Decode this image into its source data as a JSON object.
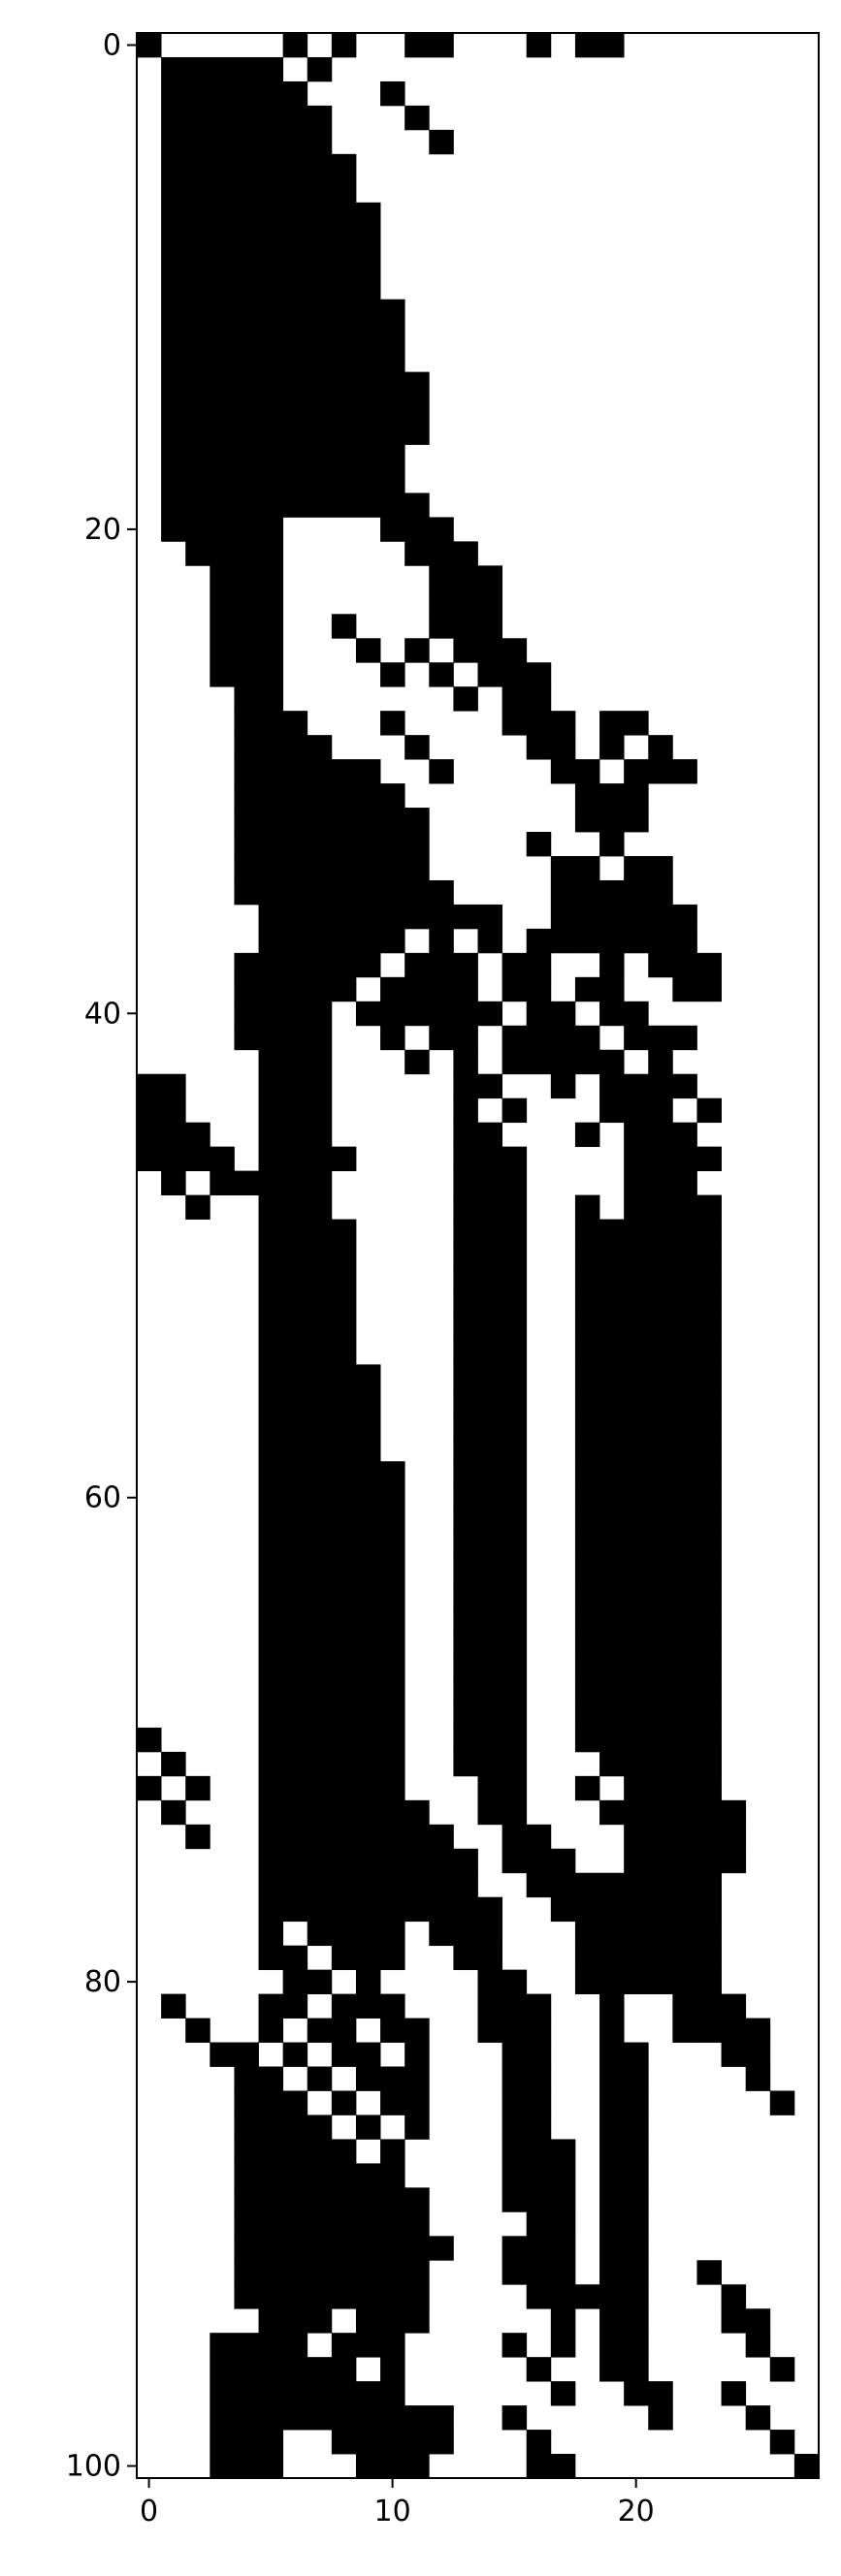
{
  "chart_data": {
    "type": "heatmap",
    "title": "",
    "xlabel": "",
    "ylabel": "",
    "n_cols": 28,
    "n_rows": 101,
    "xlim": [
      -0.5,
      27.5
    ],
    "ylim": [
      100.5,
      -0.5
    ],
    "x_ticks": [
      0,
      10,
      20
    ],
    "x_tick_labels": [
      "0",
      "10",
      "20"
    ],
    "y_ticks": [
      0,
      20,
      40,
      60,
      80,
      100
    ],
    "y_tick_labels": [
      "0",
      "20",
      "40",
      "60",
      "80",
      "100"
    ],
    "colormap": {
      "0": "#ffffff",
      "1": "#000000"
    },
    "grid": false,
    "legend": "none",
    "runs_note": "each row is a list of [start_col, end_col] inclusive runs of value 1",
    "rows": [
      [
        [
          0,
          0
        ],
        [
          6,
          6
        ],
        [
          8,
          8
        ],
        [
          11,
          12
        ],
        [
          16,
          16
        ],
        [
          18,
          19
        ]
      ],
      [
        [
          1,
          5
        ],
        [
          7,
          7
        ]
      ],
      [
        [
          1,
          5
        ],
        [
          6,
          6
        ],
        [
          10,
          10
        ]
      ],
      [
        [
          1,
          7
        ],
        [
          11,
          11
        ]
      ],
      [
        [
          1,
          7
        ],
        [
          12,
          12
        ]
      ],
      [
        [
          1,
          8
        ]
      ],
      [
        [
          1,
          8
        ]
      ],
      [
        [
          1,
          9
        ]
      ],
      [
        [
          1,
          9
        ]
      ],
      [
        [
          1,
          9
        ]
      ],
      [
        [
          1,
          9
        ]
      ],
      [
        [
          1,
          10
        ]
      ],
      [
        [
          1,
          10
        ]
      ],
      [
        [
          1,
          10
        ]
      ],
      [
        [
          1,
          11
        ]
      ],
      [
        [
          1,
          11
        ]
      ],
      [
        [
          1,
          11
        ]
      ],
      [
        [
          1,
          10
        ]
      ],
      [
        [
          1,
          10
        ]
      ],
      [
        [
          1,
          11
        ]
      ],
      [
        [
          1,
          5
        ],
        [
          10,
          12
        ]
      ],
      [
        [
          2,
          5
        ],
        [
          11,
          13
        ]
      ],
      [
        [
          3,
          5
        ],
        [
          12,
          14
        ]
      ],
      [
        [
          3,
          5
        ],
        [
          12,
          14
        ]
      ],
      [
        [
          3,
          5
        ],
        [
          8,
          8
        ],
        [
          12,
          14
        ]
      ],
      [
        [
          3,
          5
        ],
        [
          9,
          9
        ],
        [
          11,
          11
        ],
        [
          13,
          15
        ]
      ],
      [
        [
          3,
          5
        ],
        [
          10,
          10
        ],
        [
          12,
          12
        ],
        [
          14,
          16
        ]
      ],
      [
        [
          4,
          5
        ],
        [
          13,
          13
        ],
        [
          15,
          16
        ]
      ],
      [
        [
          4,
          6
        ],
        [
          10,
          10
        ],
        [
          15,
          17
        ],
        [
          19,
          20
        ]
      ],
      [
        [
          4,
          7
        ],
        [
          11,
          11
        ],
        [
          16,
          17
        ],
        [
          19,
          19
        ],
        [
          21,
          21
        ]
      ],
      [
        [
          4,
          9
        ],
        [
          12,
          12
        ],
        [
          17,
          18
        ],
        [
          20,
          22
        ]
      ],
      [
        [
          4,
          10
        ],
        [
          18,
          20
        ]
      ],
      [
        [
          4,
          11
        ],
        [
          18,
          20
        ]
      ],
      [
        [
          4,
          11
        ],
        [
          16,
          16
        ],
        [
          19,
          19
        ]
      ],
      [
        [
          4,
          11
        ],
        [
          17,
          18
        ],
        [
          20,
          21
        ]
      ],
      [
        [
          4,
          12
        ],
        [
          17,
          21
        ]
      ],
      [
        [
          5,
          13
        ],
        [
          14,
          14
        ],
        [
          17,
          19
        ],
        [
          20,
          22
        ]
      ],
      [
        [
          5,
          10
        ],
        [
          12,
          12
        ],
        [
          14,
          14
        ],
        [
          16,
          16
        ],
        [
          17,
          17
        ],
        [
          18,
          18
        ],
        [
          19,
          19
        ],
        [
          20,
          22
        ]
      ],
      [
        [
          4,
          9
        ],
        [
          11,
          13
        ],
        [
          15,
          16
        ],
        [
          19,
          19
        ],
        [
          21,
          23
        ]
      ],
      [
        [
          4,
          8
        ],
        [
          10,
          13
        ],
        [
          15,
          16
        ],
        [
          18,
          19
        ],
        [
          22,
          23
        ]
      ],
      [
        [
          4,
          7
        ],
        [
          9,
          14
        ],
        [
          16,
          17
        ],
        [
          19,
          20
        ]
      ],
      [
        [
          4,
          7
        ],
        [
          10,
          10
        ],
        [
          12,
          13
        ],
        [
          15,
          16
        ],
        [
          17,
          18
        ],
        [
          20,
          22
        ]
      ],
      [
        [
          5,
          7
        ],
        [
          11,
          11
        ],
        [
          13,
          13
        ],
        [
          15,
          16
        ],
        [
          17,
          17
        ],
        [
          18,
          18
        ],
        [
          19,
          19
        ],
        [
          21,
          21
        ]
      ],
      [
        [
          0,
          1
        ],
        [
          5,
          7
        ],
        [
          13,
          14
        ],
        [
          17,
          17
        ],
        [
          19,
          21
        ],
        [
          22,
          22
        ]
      ],
      [
        [
          0,
          1
        ],
        [
          5,
          7
        ],
        [
          13,
          13
        ],
        [
          15,
          15
        ],
        [
          19,
          20
        ],
        [
          21,
          21
        ],
        [
          23,
          23
        ]
      ],
      [
        [
          0,
          2
        ],
        [
          5,
          7
        ],
        [
          13,
          14
        ],
        [
          18,
          18
        ],
        [
          20,
          22
        ]
      ],
      [
        [
          0,
          3
        ],
        [
          5,
          8
        ],
        [
          13,
          15
        ],
        [
          20,
          23
        ]
      ],
      [
        [
          1,
          1
        ],
        [
          3,
          4
        ],
        [
          5,
          7
        ],
        [
          13,
          15
        ],
        [
          20,
          22
        ]
      ],
      [
        [
          2,
          2
        ],
        [
          5,
          7
        ],
        [
          13,
          15
        ],
        [
          18,
          18
        ],
        [
          20,
          23
        ]
      ],
      [
        [
          5,
          8
        ],
        [
          13,
          15
        ],
        [
          18,
          23
        ]
      ],
      [
        [
          5,
          8
        ],
        [
          13,
          15
        ],
        [
          18,
          23
        ]
      ],
      [
        [
          5,
          8
        ],
        [
          13,
          15
        ],
        [
          18,
          23
        ]
      ],
      [
        [
          5,
          8
        ],
        [
          13,
          15
        ],
        [
          18,
          23
        ]
      ],
      [
        [
          5,
          8
        ],
        [
          13,
          15
        ],
        [
          18,
          23
        ]
      ],
      [
        [
          5,
          8
        ],
        [
          13,
          15
        ],
        [
          18,
          23
        ]
      ],
      [
        [
          5,
          9
        ],
        [
          13,
          15
        ],
        [
          18,
          23
        ]
      ],
      [
        [
          5,
          9
        ],
        [
          13,
          15
        ],
        [
          18,
          23
        ]
      ],
      [
        [
          5,
          9
        ],
        [
          13,
          15
        ],
        [
          18,
          23
        ]
      ],
      [
        [
          5,
          9
        ],
        [
          13,
          15
        ],
        [
          18,
          23
        ]
      ],
      [
        [
          5,
          10
        ],
        [
          13,
          15
        ],
        [
          18,
          23
        ]
      ],
      [
        [
          5,
          10
        ],
        [
          13,
          15
        ],
        [
          18,
          23
        ]
      ],
      [
        [
          5,
          10
        ],
        [
          13,
          15
        ],
        [
          18,
          23
        ]
      ],
      [
        [
          5,
          10
        ],
        [
          13,
          15
        ],
        [
          18,
          23
        ]
      ],
      [
        [
          5,
          10
        ],
        [
          13,
          15
        ],
        [
          18,
          23
        ]
      ],
      [
        [
          5,
          10
        ],
        [
          13,
          15
        ],
        [
          18,
          23
        ]
      ],
      [
        [
          5,
          10
        ],
        [
          13,
          15
        ],
        [
          18,
          23
        ]
      ],
      [
        [
          5,
          10
        ],
        [
          13,
          15
        ],
        [
          18,
          23
        ]
      ],
      [
        [
          5,
          10
        ],
        [
          13,
          15
        ],
        [
          18,
          23
        ]
      ],
      [
        [
          5,
          10
        ],
        [
          13,
          15
        ],
        [
          18,
          23
        ]
      ],
      [
        [
          5,
          10
        ],
        [
          13,
          15
        ],
        [
          18,
          23
        ]
      ],
      [
        [
          0,
          0
        ],
        [
          5,
          10
        ],
        [
          13,
          15
        ],
        [
          18,
          23
        ]
      ],
      [
        [
          1,
          1
        ],
        [
          5,
          10
        ],
        [
          13,
          15
        ],
        [
          19,
          23
        ]
      ],
      [
        [
          0,
          0
        ],
        [
          2,
          2
        ],
        [
          5,
          10
        ],
        [
          14,
          15
        ],
        [
          18,
          18
        ],
        [
          20,
          23
        ]
      ],
      [
        [
          1,
          1
        ],
        [
          5,
          11
        ],
        [
          14,
          15
        ],
        [
          19,
          24
        ]
      ],
      [
        [
          2,
          2
        ],
        [
          5,
          12
        ],
        [
          15,
          16
        ],
        [
          20,
          24
        ]
      ],
      [
        [
          5,
          12
        ],
        [
          13,
          13
        ],
        [
          15,
          17
        ],
        [
          20,
          24
        ]
      ],
      [
        [
          5,
          13
        ],
        [
          16,
          18
        ],
        [
          19,
          23
        ]
      ],
      [
        [
          5,
          14
        ],
        [
          17,
          18
        ],
        [
          19,
          23
        ]
      ],
      [
        [
          5,
          5
        ],
        [
          7,
          10
        ],
        [
          12,
          14
        ],
        [
          18,
          23
        ]
      ],
      [
        [
          5,
          6
        ],
        [
          8,
          9
        ],
        [
          10,
          10
        ],
        [
          13,
          14
        ],
        [
          18,
          23
        ]
      ],
      [
        [
          6,
          7
        ],
        [
          9,
          9
        ],
        [
          14,
          15
        ],
        [
          18,
          23
        ]
      ],
      [
        [
          1,
          1
        ],
        [
          5,
          6
        ],
        [
          8,
          9
        ],
        [
          10,
          10
        ],
        [
          14,
          16
        ],
        [
          19,
          19
        ],
        [
          22,
          24
        ]
      ],
      [
        [
          2,
          2
        ],
        [
          5,
          5
        ],
        [
          7,
          8
        ],
        [
          10,
          10
        ],
        [
          11,
          11
        ],
        [
          14,
          15
        ],
        [
          16,
          16
        ],
        [
          19,
          19
        ],
        [
          22,
          22
        ],
        [
          23,
          24
        ],
        [
          25,
          25
        ]
      ],
      [
        [
          3,
          4
        ],
        [
          6,
          6
        ],
        [
          8,
          8
        ],
        [
          9,
          9
        ],
        [
          11,
          11
        ],
        [
          15,
          16
        ],
        [
          19,
          20
        ],
        [
          24,
          25
        ]
      ],
      [
        [
          4,
          5
        ],
        [
          7,
          7
        ],
        [
          9,
          10
        ],
        [
          11,
          11
        ],
        [
          15,
          16
        ],
        [
          19,
          20
        ],
        [
          25,
          25
        ]
      ],
      [
        [
          4,
          6
        ],
        [
          8,
          8
        ],
        [
          10,
          10
        ],
        [
          11,
          11
        ],
        [
          15,
          16
        ],
        [
          19,
          20
        ],
        [
          26,
          26
        ]
      ],
      [
        [
          4,
          7
        ],
        [
          9,
          9
        ],
        [
          11,
          11
        ],
        [
          15,
          16
        ],
        [
          19,
          20
        ]
      ],
      [
        [
          4,
          8
        ],
        [
          10,
          10
        ],
        [
          15,
          17
        ],
        [
          19,
          20
        ]
      ],
      [
        [
          4,
          10
        ],
        [
          15,
          17
        ],
        [
          19,
          20
        ]
      ],
      [
        [
          4,
          11
        ],
        [
          15,
          17
        ],
        [
          19,
          20
        ]
      ],
      [
        [
          4,
          11
        ],
        [
          16,
          17
        ],
        [
          19,
          20
        ]
      ],
      [
        [
          4,
          12
        ],
        [
          15,
          17
        ],
        [
          19,
          20
        ]
      ],
      [
        [
          4,
          11
        ],
        [
          15,
          17
        ],
        [
          19,
          20
        ],
        [
          23,
          23
        ]
      ],
      [
        [
          4,
          11
        ],
        [
          16,
          20
        ],
        [
          24,
          24
        ]
      ],
      [
        [
          5,
          7
        ],
        [
          9,
          11
        ],
        [
          17,
          17
        ],
        [
          19,
          20
        ],
        [
          24,
          25
        ]
      ],
      [
        [
          3,
          4
        ],
        [
          5,
          5
        ],
        [
          6,
          6
        ],
        [
          8,
          8
        ],
        [
          9,
          9
        ],
        [
          10,
          10
        ],
        [
          15,
          15
        ],
        [
          17,
          17
        ],
        [
          19,
          20
        ],
        [
          25,
          25
        ]
      ],
      [
        [
          3,
          8
        ],
        [
          10,
          10
        ],
        [
          16,
          16
        ],
        [
          19,
          20
        ],
        [
          26,
          26
        ]
      ],
      [
        [
          3,
          9
        ],
        [
          10,
          10
        ],
        [
          17,
          17
        ],
        [
          20,
          21
        ],
        [
          24,
          24
        ]
      ],
      [
        [
          3,
          12
        ],
        [
          15,
          15
        ],
        [
          21,
          21
        ],
        [
          25,
          25
        ]
      ],
      [
        [
          3,
          5
        ],
        [
          8,
          12
        ],
        [
          16,
          16
        ],
        [
          26,
          26
        ]
      ],
      [
        [
          3,
          5
        ],
        [
          9,
          11
        ],
        [
          16,
          17
        ],
        [
          27,
          27
        ]
      ]
    ]
  }
}
